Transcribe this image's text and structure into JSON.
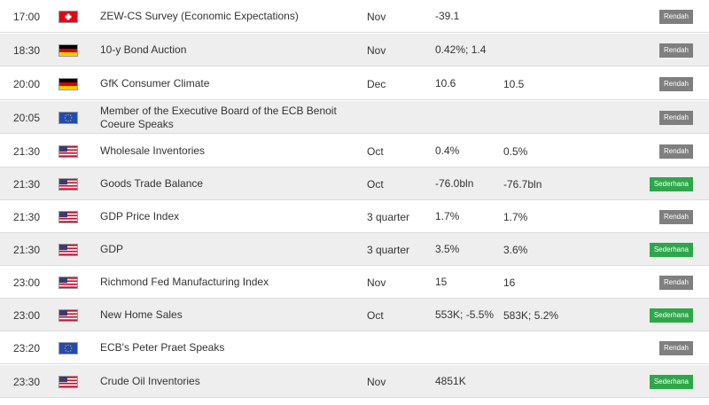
{
  "colors": {
    "rendah": "#7f7f7f",
    "sederhana": "#2da74a",
    "row_alt": "#eeeeee",
    "text": "#333333"
  },
  "rows": [
    {
      "time": "17:00",
      "flag": "switzerland-flag-icon",
      "event": "ZEW-CS Survey (Economic Expectations)",
      "period": "Nov",
      "actual": "-39.1",
      "forecast": "",
      "impact": "Rendah",
      "impact_level": "low"
    },
    {
      "time": "18:30",
      "flag": "germany-flag-icon",
      "event": "10-y Bond Auction",
      "period": "Nov",
      "actual": "0.42%; 1.4",
      "forecast": "",
      "impact": "Rendah",
      "impact_level": "low"
    },
    {
      "time": "20:00",
      "flag": "germany-flag-icon",
      "event": "GfK Consumer Climate",
      "period": "Dec",
      "actual": "10.6",
      "forecast": "10.5",
      "impact": "Rendah",
      "impact_level": "low"
    },
    {
      "time": "20:05",
      "flag": "eu-flag-icon",
      "event": "Member of the Executive Board of the ECB Benoit Coeure Speaks",
      "period": "",
      "actual": "",
      "forecast": "",
      "impact": "Rendah",
      "impact_level": "low"
    },
    {
      "time": "21:30",
      "flag": "usa-flag-icon",
      "event": "Wholesale Inventories",
      "period": "Oct",
      "actual": "0.4%",
      "forecast": "0.5%",
      "impact": "Rendah",
      "impact_level": "low"
    },
    {
      "time": "21:30",
      "flag": "usa-flag-icon",
      "event": "Goods Trade Balance",
      "period": "Oct",
      "actual": "-76.0bln",
      "forecast": "-76.7bln",
      "impact": "Sederhana",
      "impact_level": "medium"
    },
    {
      "time": "21:30",
      "flag": "usa-flag-icon",
      "event": "GDP Price Index",
      "period": "3 quarter",
      "actual": "1.7%",
      "forecast": "1.7%",
      "impact": "Rendah",
      "impact_level": "low"
    },
    {
      "time": "21:30",
      "flag": "usa-flag-icon",
      "event": "GDP",
      "period": "3 quarter",
      "actual": "3.5%",
      "forecast": "3.6%",
      "impact": "Sederhana",
      "impact_level": "medium"
    },
    {
      "time": "23:00",
      "flag": "usa-flag-icon",
      "event": "Richmond Fed Manufacturing Index",
      "period": "Nov",
      "actual": "15",
      "forecast": "16",
      "impact": "Rendah",
      "impact_level": "low"
    },
    {
      "time": "23:00",
      "flag": "usa-flag-icon",
      "event": "New Home Sales",
      "period": "Oct",
      "actual": "553K; -5.5%",
      "forecast": "583K; 5.2%",
      "impact": "Sederhana",
      "impact_level": "medium"
    },
    {
      "time": "23:20",
      "flag": "eu-flag-icon",
      "event": "ECB's Peter Praet Speaks",
      "period": "",
      "actual": "",
      "forecast": "",
      "impact": "Rendah",
      "impact_level": "low"
    },
    {
      "time": "23:30",
      "flag": "usa-flag-icon",
      "event": "Crude Oil Inventories",
      "period": "Nov",
      "actual": "4851K",
      "forecast": "",
      "impact": "Sederhana",
      "impact_level": "medium"
    }
  ]
}
